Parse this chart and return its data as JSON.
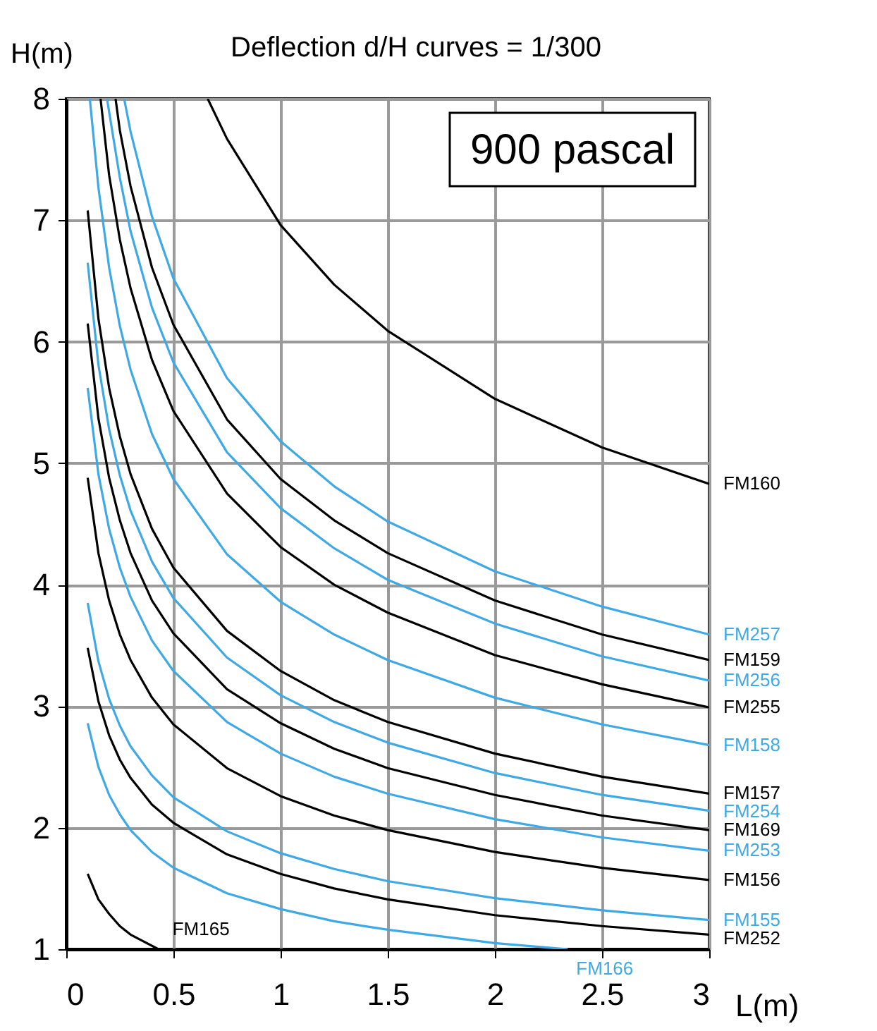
{
  "chart_data": {
    "type": "line",
    "title": "Deflection d/H curves = 1/300",
    "xlabel": "L(m)",
    "ylabel": "H(m)",
    "annotations": [
      "900 pascal"
    ],
    "xlim": [
      0,
      3
    ],
    "ylim": [
      1,
      8
    ],
    "xticks": [
      0,
      0.5,
      1,
      1.5,
      2,
      2.5,
      3
    ],
    "yticks": [
      1,
      2,
      3,
      4,
      5,
      6,
      7,
      8
    ],
    "grid": true,
    "legend": false,
    "line_style": "solid",
    "marker": "none",
    "series": [
      {
        "name": "FM160",
        "color": "#000000",
        "x": [
          0.66,
          0.75,
          1,
          1.25,
          1.5,
          2,
          2.5,
          3
        ],
        "values": [
          8,
          7.67,
          6.96,
          6.47,
          6.09,
          5.53,
          5.13,
          4.83
        ]
      },
      {
        "name": "FM257",
        "color": "#3fa9e6",
        "x": [
          0.27,
          0.3,
          0.4,
          0.5,
          0.75,
          1,
          1.25,
          1.5,
          2,
          2.5,
          3
        ],
        "values": [
          8,
          7.73,
          7.03,
          6.52,
          5.7,
          5.18,
          4.81,
          4.52,
          4.11,
          3.82,
          3.59
        ]
      },
      {
        "name": "FM159",
        "color": "#000000",
        "x": [
          0.23,
          0.25,
          0.3,
          0.4,
          0.5,
          0.75,
          1,
          1.25,
          1.5,
          2,
          2.5,
          3
        ],
        "values": [
          8,
          7.74,
          7.28,
          6.61,
          6.14,
          5.36,
          4.87,
          4.53,
          4.26,
          3.87,
          3.59,
          3.38
        ]
      },
      {
        "name": "FM256",
        "color": "#3fa9e6",
        "x": [
          0.19,
          0.25,
          0.3,
          0.4,
          0.5,
          0.75,
          1,
          1.25,
          1.5,
          2,
          2.5,
          3
        ],
        "values": [
          8,
          7.35,
          6.91,
          6.28,
          5.83,
          5.09,
          4.63,
          4.3,
          4.04,
          3.68,
          3.41,
          3.21
        ]
      },
      {
        "name": "FM255",
        "color": "#000000",
        "x": [
          0.16,
          0.2,
          0.25,
          0.3,
          0.4,
          0.5,
          0.75,
          1,
          1.25,
          1.5,
          2,
          2.5,
          3
        ],
        "values": [
          8,
          7.37,
          6.84,
          6.44,
          5.85,
          5.43,
          4.75,
          4.31,
          4,
          3.77,
          3.42,
          3.18,
          2.99
        ]
      },
      {
        "name": "FM158",
        "color": "#3fa9e6",
        "x": [
          0.11,
          0.15,
          0.2,
          0.25,
          0.3,
          0.4,
          0.5,
          0.75,
          1,
          1.25,
          1.5,
          2,
          2.5,
          3
        ],
        "values": [
          8,
          7.27,
          6.61,
          6.13,
          5.77,
          5.24,
          4.87,
          4.25,
          3.86,
          3.59,
          3.38,
          3.07,
          2.85,
          2.68
        ]
      },
      {
        "name": "FM157",
        "color": "#000000",
        "x": [
          0.1,
          0.15,
          0.2,
          0.25,
          0.3,
          0.4,
          0.5,
          0.75,
          1,
          1.25,
          1.5,
          2,
          2.5,
          3
        ],
        "values": [
          7.08,
          6.19,
          5.62,
          5.22,
          4.91,
          4.46,
          4.14,
          3.62,
          3.29,
          3.05,
          2.87,
          2.61,
          2.42,
          2.28
        ]
      },
      {
        "name": "FM254",
        "color": "#3fa9e6",
        "x": [
          0.1,
          0.15,
          0.2,
          0.25,
          0.3,
          0.4,
          0.5,
          0.75,
          1,
          1.25,
          1.5,
          2,
          2.5,
          3
        ],
        "values": [
          6.65,
          5.81,
          5.28,
          4.9,
          4.61,
          4.19,
          3.89,
          3.4,
          3.09,
          2.87,
          2.7,
          2.45,
          2.27,
          2.14
        ]
      },
      {
        "name": "FM169",
        "color": "#000000",
        "x": [
          0.1,
          0.15,
          0.2,
          0.25,
          0.3,
          0.4,
          0.5,
          0.75,
          1,
          1.25,
          1.5,
          2,
          2.5,
          3
        ],
        "values": [
          6.15,
          5.37,
          4.88,
          4.53,
          4.26,
          3.87,
          3.6,
          3.14,
          2.86,
          2.65,
          2.49,
          2.27,
          2.1,
          1.98
        ]
      },
      {
        "name": "FM253",
        "color": "#3fa9e6",
        "x": [
          0.1,
          0.15,
          0.2,
          0.25,
          0.3,
          0.4,
          0.5,
          0.75,
          1,
          1.25,
          1.5,
          2,
          2.5,
          3
        ],
        "values": [
          5.62,
          4.91,
          4.46,
          4.14,
          3.9,
          3.54,
          3.29,
          2.87,
          2.61,
          2.42,
          2.28,
          2.07,
          1.92,
          1.81
        ]
      },
      {
        "name": "FM156",
        "color": "#000000",
        "x": [
          0.1,
          0.15,
          0.2,
          0.25,
          0.3,
          0.4,
          0.5,
          0.75,
          1,
          1.25,
          1.5,
          2,
          2.5,
          3
        ],
        "values": [
          4.88,
          4.26,
          3.87,
          3.59,
          3.38,
          3.07,
          2.85,
          2.49,
          2.26,
          2.1,
          1.98,
          1.8,
          1.67,
          1.57
        ]
      },
      {
        "name": "FM155",
        "color": "#3fa9e6",
        "x": [
          0.1,
          0.15,
          0.2,
          0.25,
          0.3,
          0.4,
          0.5,
          0.75,
          1,
          1.25,
          1.5,
          2,
          2.5,
          3
        ],
        "values": [
          3.85,
          3.37,
          3.06,
          2.84,
          2.67,
          2.43,
          2.25,
          1.97,
          1.79,
          1.66,
          1.56,
          1.42,
          1.32,
          1.24
        ]
      },
      {
        "name": "FM252",
        "color": "#000000",
        "x": [
          0.1,
          0.15,
          0.2,
          0.25,
          0.3,
          0.4,
          0.5,
          0.75,
          1,
          1.25,
          1.5,
          2,
          2.5,
          3
        ],
        "values": [
          3.48,
          3.04,
          2.76,
          2.56,
          2.41,
          2.19,
          2.04,
          1.78,
          1.62,
          1.5,
          1.41,
          1.28,
          1.19,
          1.12
        ]
      },
      {
        "name": "FM166",
        "color": "#3fa9e6",
        "x": [
          0.1,
          0.15,
          0.2,
          0.25,
          0.3,
          0.4,
          0.5,
          0.75,
          1,
          1.25,
          1.5,
          2,
          2.34
        ],
        "values": [
          2.86,
          2.5,
          2.27,
          2.11,
          1.98,
          1.8,
          1.67,
          1.46,
          1.33,
          1.23,
          1.16,
          1.05,
          1
        ]
      },
      {
        "name": "FM165",
        "color": "#000000",
        "x": [
          0.1,
          0.15,
          0.2,
          0.25,
          0.3,
          0.43
        ],
        "values": [
          1.62,
          1.41,
          1.29,
          1.19,
          1.12,
          1
        ]
      }
    ]
  }
}
